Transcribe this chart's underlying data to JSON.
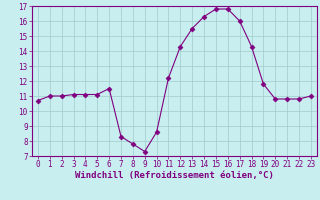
{
  "xlabel": "Windchill (Refroidissement éolien,°C)",
  "x": [
    0,
    1,
    2,
    3,
    4,
    5,
    6,
    7,
    8,
    9,
    10,
    11,
    12,
    13,
    14,
    15,
    16,
    17,
    18,
    19,
    20,
    21,
    22,
    23
  ],
  "y": [
    10.7,
    11.0,
    11.0,
    11.1,
    11.1,
    11.1,
    11.5,
    8.3,
    7.8,
    7.3,
    8.6,
    12.2,
    14.3,
    15.5,
    16.3,
    16.8,
    16.8,
    16.0,
    14.3,
    11.8,
    10.8,
    10.8,
    10.8,
    11.0
  ],
  "line_color": "#800080",
  "marker": "D",
  "marker_size": 2.5,
  "bg_color": "#C8EEF0",
  "grid_color": "#A0CCCC",
  "ylim": [
    7,
    17
  ],
  "xlim": [
    -0.5,
    23.5
  ],
  "yticks": [
    7,
    8,
    9,
    10,
    11,
    12,
    13,
    14,
    15,
    16,
    17
  ],
  "xticks": [
    0,
    1,
    2,
    3,
    4,
    5,
    6,
    7,
    8,
    9,
    10,
    11,
    12,
    13,
    14,
    15,
    16,
    17,
    18,
    19,
    20,
    21,
    22,
    23
  ],
  "tick_label_color": "#800080",
  "label_fontsize": 6.5,
  "tick_fontsize": 5.5,
  "spine_color": "#800080"
}
